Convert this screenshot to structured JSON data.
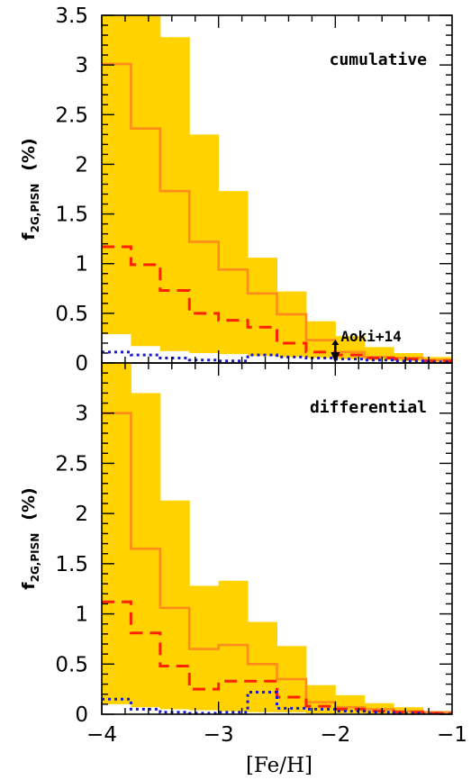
{
  "colors": {
    "band": "#ffd200",
    "solid": "#ff8c1a",
    "dashed": "#ff2200",
    "dotted": "#1a1acc",
    "axes": "#000000"
  },
  "x_tick_labels": [
    "−4",
    "−3",
    "−2",
    "−1"
  ],
  "xlabel": "[Fe/H]",
  "ylabel_main": "f",
  "ylabel_sub": "2G,PISN",
  "ylabel_unit": "(%)",
  "chart_data": [
    {
      "type": "line",
      "panel_label": "cumulative",
      "x_edges": [
        -4.0,
        -3.75,
        -3.5,
        -3.25,
        -3.0,
        -2.75,
        -2.5,
        -2.25,
        -2.0,
        -1.75,
        -1.5,
        -1.25,
        -1.0
      ],
      "xlim": [
        -4,
        -1
      ],
      "ylim": [
        0,
        3.5
      ],
      "y_tick_labels": [
        "0",
        "0.5",
        "1",
        "1.5",
        "2",
        "2.5",
        "3",
        "3.5"
      ],
      "y_ticks": [
        0,
        0.5,
        1,
        1.5,
        2,
        2.5,
        3,
        3.5
      ],
      "series": [
        {
          "style": "band",
          "lower": [
            0.29,
            0.17,
            0.12,
            0.1,
            0.09,
            0.07,
            0.06,
            0.05,
            0.04,
            0.03,
            0.02,
            0.01
          ],
          "upper": [
            3.55,
            3.55,
            3.28,
            2.3,
            1.73,
            1.06,
            0.72,
            0.42,
            0.27,
            0.16,
            0.1,
            0.06
          ]
        },
        {
          "style": "solid",
          "values": [
            3.01,
            2.36,
            1.73,
            1.22,
            0.94,
            0.7,
            0.49,
            0.23,
            0.11,
            0.06,
            0.05,
            0.03
          ]
        },
        {
          "style": "dashed",
          "values": [
            1.17,
            0.99,
            0.73,
            0.5,
            0.43,
            0.36,
            0.2,
            0.11,
            0.08,
            0.05,
            0.04,
            0.02
          ]
        },
        {
          "style": "dotted",
          "values": [
            0.11,
            0.08,
            0.05,
            0.03,
            0.02,
            0.08,
            0.06,
            0.05,
            0.04,
            0.03,
            0.02,
            0.01
          ]
        }
      ],
      "annotations": [
        {
          "label": "Aoki+14",
          "x": -2.0,
          "y_top": 0.2,
          "y_bottom": 0.0,
          "kind": "upper-limit"
        }
      ]
    },
    {
      "type": "line",
      "panel_label": "differential",
      "x_edges": [
        -4.0,
        -3.75,
        -3.5,
        -3.25,
        -3.0,
        -2.75,
        -2.5,
        -2.25,
        -2.0,
        -1.75,
        -1.5,
        -1.25,
        -1.0
      ],
      "xlim": [
        -4,
        -1
      ],
      "ylim": [
        0,
        3.5
      ],
      "y_tick_labels": [
        "0",
        "0.5",
        "1",
        "1.5",
        "2",
        "2.5",
        "3"
      ],
      "y_ticks": [
        0,
        0.5,
        1,
        1.5,
        2,
        2.5,
        3
      ],
      "series": [
        {
          "style": "band",
          "lower": [
            0.1,
            0.07,
            0.05,
            0.04,
            0.03,
            0.02,
            0.02,
            0.01,
            0.01,
            0.0,
            0.0,
            0.0
          ],
          "upper": [
            3.55,
            3.2,
            2.13,
            1.28,
            1.33,
            0.92,
            0.68,
            0.29,
            0.19,
            0.11,
            0.07,
            0.03
          ]
        },
        {
          "style": "solid",
          "values": [
            3.0,
            1.65,
            1.06,
            0.65,
            0.69,
            0.5,
            0.35,
            0.12,
            0.07,
            0.05,
            0.03,
            0.02
          ]
        },
        {
          "style": "dashed",
          "values": [
            1.12,
            0.81,
            0.48,
            0.25,
            0.33,
            0.33,
            0.17,
            0.08,
            0.05,
            0.03,
            0.02,
            0.01
          ]
        },
        {
          "style": "dotted",
          "values": [
            0.15,
            0.05,
            0.02,
            0.01,
            0.02,
            0.22,
            0.06,
            0.05,
            0.03,
            0.02,
            0.01,
            0.0
          ]
        }
      ],
      "annotations": []
    }
  ]
}
